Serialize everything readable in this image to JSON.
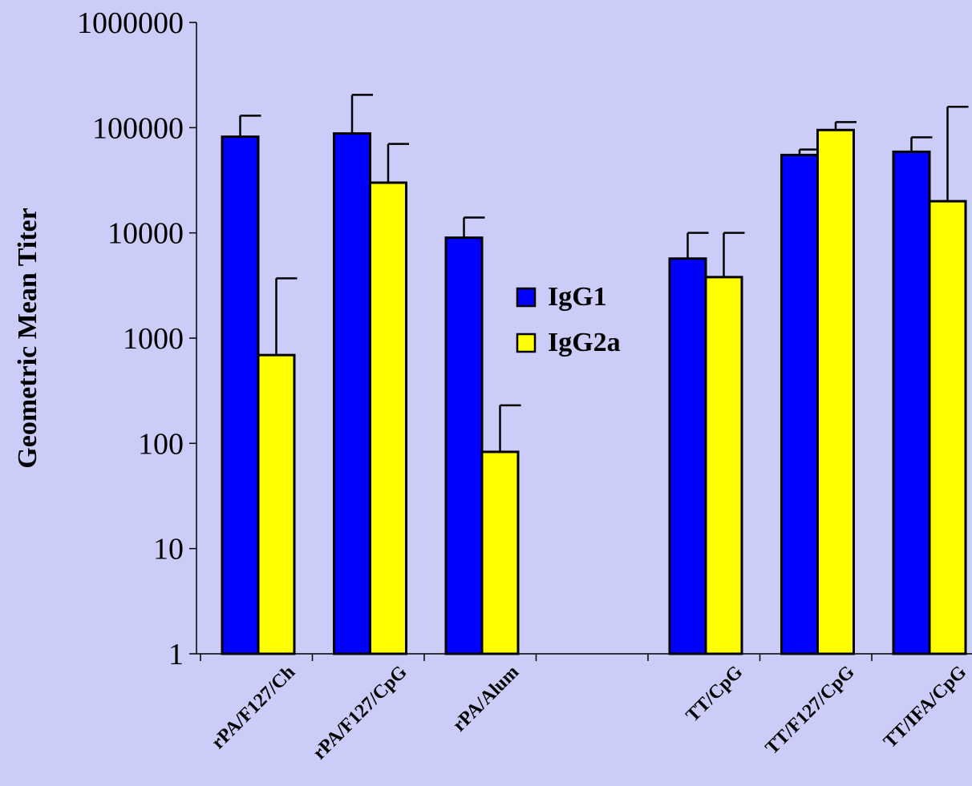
{
  "chart_data": {
    "type": "bar",
    "ylabel": "Geometric Mean Titer",
    "xlabel": "",
    "yscale": "log",
    "ylim": [
      1,
      1000000
    ],
    "y_ticks": [
      "1",
      "10",
      "100",
      "1000",
      "10000",
      "100000",
      "1000000"
    ],
    "categories": [
      "rPA/F127/Ch",
      "rPA/F127/CpG",
      "rPA/Alum",
      "",
      "TT/CpG",
      "TT/F127/CpG",
      "TT/IFA/CpG"
    ],
    "series": [
      {
        "name": "IgG1",
        "color": "#0000FF",
        "values": [
          82000,
          88000,
          9000,
          null,
          5700,
          55000,
          59000
        ],
        "error_upper": [
          130000,
          205000,
          14000,
          null,
          10000,
          62000,
          81000
        ]
      },
      {
        "name": "IgG2a",
        "color": "#FFFF00",
        "values": [
          690,
          30000,
          83,
          null,
          3800,
          95000,
          20000
        ],
        "error_upper": [
          3700,
          70000,
          230,
          null,
          10000,
          113000,
          158000
        ]
      }
    ],
    "legend_position": "center",
    "grid": false,
    "background": "#CCCCF8"
  }
}
